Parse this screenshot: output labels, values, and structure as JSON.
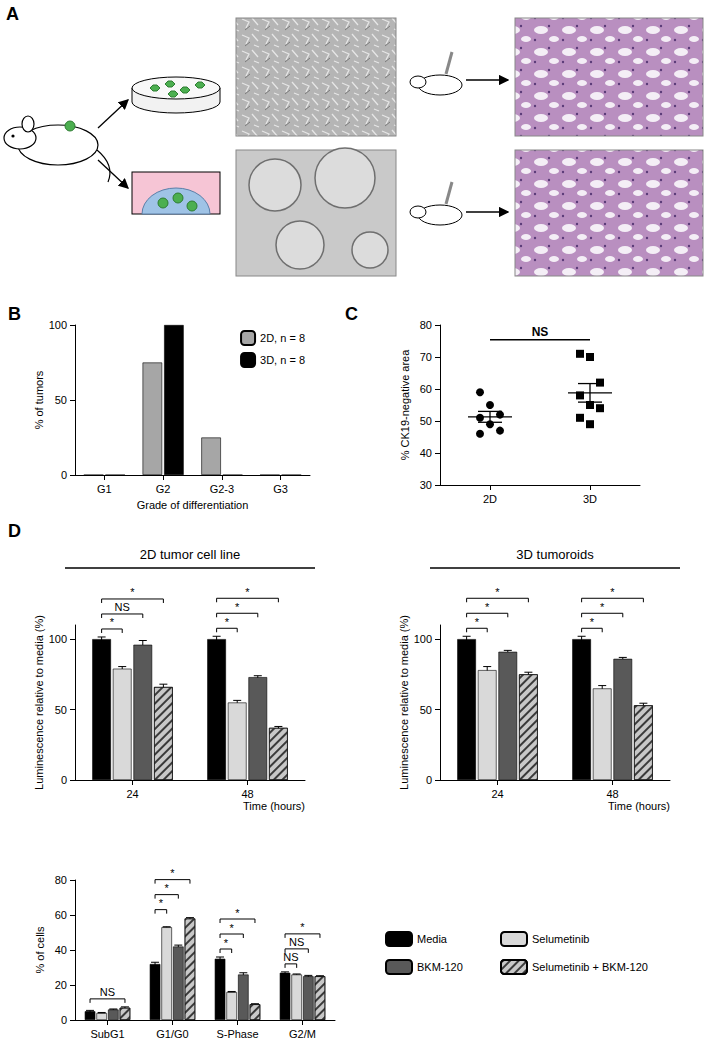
{
  "panel_a": {
    "label": "A"
  },
  "chart_data": [
    {
      "panel": "B",
      "type": "bar",
      "x_label": "Grade of differentiation",
      "y_label": "% of tumors",
      "categories": [
        "G1",
        "G2",
        "G2-3",
        "G3"
      ],
      "series": [
        {
          "name": "2D, n = 8",
          "color": "#a6a6a6",
          "values": [
            0,
            75,
            25,
            0
          ]
        },
        {
          "name": "3D, n = 8",
          "color": "#000000",
          "values": [
            0,
            100,
            0,
            0
          ]
        }
      ],
      "ylim": [
        0,
        100
      ],
      "yticks": [
        0,
        50,
        100
      ],
      "grid": false,
      "legend": "top-right"
    },
    {
      "panel": "C",
      "type": "scatter",
      "y_label": "% CK19-negative area",
      "categories": [
        "2D",
        "3D"
      ],
      "groups": [
        {
          "category": "2D",
          "color": "#000000",
          "marker": "circle",
          "values": [
            59,
            55,
            52,
            51,
            49,
            47,
            46
          ],
          "mean": 51.3,
          "sem": 1.7
        },
        {
          "category": "3D",
          "color": "#000000",
          "marker": "square",
          "values": [
            71,
            70,
            62,
            58,
            55,
            54,
            51,
            49
          ],
          "mean": 58.8,
          "sem": 2.9
        }
      ],
      "significance": [
        {
          "from": "2D",
          "to": "3D",
          "label": "NS"
        }
      ],
      "ylim": [
        30,
        80
      ],
      "yticks": [
        30,
        40,
        50,
        60,
        70,
        80
      ],
      "grid": false
    },
    {
      "panel": "D",
      "type": "bar",
      "title": "2D tumor cell line",
      "x_label": "Time (hours)",
      "y_label": "Luminescence relative to media (%)",
      "categories": [
        "24",
        "48"
      ],
      "series": [
        {
          "name": "Media",
          "color": "#000000",
          "values": [
            100,
            100
          ],
          "errors": [
            1.5,
            2
          ]
        },
        {
          "name": "Selumetinib",
          "color": "#d9d9d9",
          "values": [
            79,
            55
          ],
          "errors": [
            1.5,
            1.5
          ]
        },
        {
          "name": "BKM-120",
          "color": "#595959",
          "values": [
            96,
            73
          ],
          "errors": [
            3,
            1
          ]
        },
        {
          "name": "Selumetinib + BKM-120",
          "color": "#c8c8c8",
          "values": [
            66,
            37
          ],
          "errors": [
            2,
            1
          ]
        }
      ],
      "significance": [
        {
          "category": "24",
          "from": "Media",
          "to": "Selumetinib",
          "label": "*"
        },
        {
          "category": "24",
          "from": "Media",
          "to": "BKM-120",
          "label": "NS"
        },
        {
          "category": "24",
          "from": "Media",
          "to": "Selumetinib + BKM-120",
          "label": "*"
        },
        {
          "category": "48",
          "from": "Media",
          "to": "Selumetinib",
          "label": "*"
        },
        {
          "category": "48",
          "from": "Media",
          "to": "BKM-120",
          "label": "*"
        },
        {
          "category": "48",
          "from": "Media",
          "to": "Selumetinib + BKM-120",
          "label": "*"
        }
      ],
      "ylim": [
        0,
        110
      ],
      "yticks": [
        0,
        50,
        100
      ],
      "grid": false
    },
    {
      "type": "bar",
      "title": "3D tumoroids",
      "x_label": "Time (hours)",
      "y_label": "Luminescence relative to media (%)",
      "categories": [
        "24",
        "48"
      ],
      "series": [
        {
          "name": "Media",
          "color": "#000000",
          "values": [
            100,
            100
          ],
          "errors": [
            2,
            2
          ]
        },
        {
          "name": "Selumetinib",
          "color": "#d9d9d9",
          "values": [
            78,
            65
          ],
          "errors": [
            2.5,
            2
          ]
        },
        {
          "name": "BKM-120",
          "color": "#595959",
          "values": [
            91,
            86
          ],
          "errors": [
            1,
            1
          ]
        },
        {
          "name": "Selumetinib + BKM-120",
          "color": "#c8c8c8",
          "values": [
            75,
            53
          ],
          "errors": [
            1.5,
            1.5
          ]
        }
      ],
      "significance": [
        {
          "category": "24",
          "from": "Media",
          "to": "Selumetinib",
          "label": "*"
        },
        {
          "category": "24",
          "from": "Media",
          "to": "BKM-120",
          "label": "*"
        },
        {
          "category": "24",
          "from": "Media",
          "to": "Selumetinib + BKM-120",
          "label": "*"
        },
        {
          "category": "48",
          "from": "Media",
          "to": "Selumetinib",
          "label": "*"
        },
        {
          "category": "48",
          "from": "Media",
          "to": "BKM-120",
          "label": "*"
        },
        {
          "category": "48",
          "from": "Media",
          "to": "Selumetinib + BKM-120",
          "label": "*"
        }
      ],
      "ylim": [
        0,
        110
      ],
      "yticks": [
        0,
        50,
        100
      ],
      "grid": false
    },
    {
      "type": "bar",
      "y_label": "% of cells",
      "categories": [
        "SubG1",
        "G1/G0",
        "S-Phase",
        "G2/M"
      ],
      "series": [
        {
          "name": "Media",
          "color": "#000000",
          "values": [
            5,
            32,
            35,
            27
          ],
          "errors": [
            0.5,
            1,
            1,
            0.5
          ]
        },
        {
          "name": "Selumetinib",
          "color": "#d9d9d9",
          "values": [
            4,
            53,
            16,
            26
          ],
          "errors": [
            0.3,
            0.3,
            0.3,
            0.3
          ]
        },
        {
          "name": "BKM-120",
          "color": "#595959",
          "values": [
            6,
            42,
            26,
            25
          ],
          "errors": [
            0.3,
            0.8,
            1,
            0.5
          ]
        },
        {
          "name": "Selumetinib + BKM-120",
          "color": "#c8c8c8",
          "values": [
            7,
            58,
            9,
            25
          ],
          "errors": [
            0.5,
            0.5,
            0.3,
            0.3
          ]
        }
      ],
      "significance": [
        {
          "category": "SubG1",
          "from": "Media",
          "to": "Selumetinib + BKM-120",
          "label": "NS"
        },
        {
          "category": "G1/G0",
          "from": "Media",
          "to": "Selumetinib",
          "label": "*"
        },
        {
          "category": "G1/G0",
          "from": "Media",
          "to": "BKM-120",
          "label": "*"
        },
        {
          "category": "G1/G0",
          "from": "Media",
          "to": "Selumetinib + BKM-120",
          "label": "*"
        },
        {
          "category": "S-Phase",
          "from": "Media",
          "to": "Selumetinib",
          "label": "*"
        },
        {
          "category": "S-Phase",
          "from": "Media",
          "to": "BKM-120",
          "label": "*"
        },
        {
          "category": "S-Phase",
          "from": "Media",
          "to": "Selumetinib + BKM-120",
          "label": "*"
        },
        {
          "category": "G2/M",
          "from": "Media",
          "to": "Selumetinib",
          "label": "NS"
        },
        {
          "category": "G2/M",
          "from": "Media",
          "to": "BKM-120",
          "label": "NS"
        },
        {
          "category": "G2/M",
          "from": "Media",
          "to": "Selumetinib + BKM-120",
          "label": "*"
        }
      ],
      "ylim": [
        0,
        80
      ],
      "yticks": [
        0,
        20,
        40,
        60,
        80
      ],
      "grid": false,
      "legend": "right"
    }
  ]
}
